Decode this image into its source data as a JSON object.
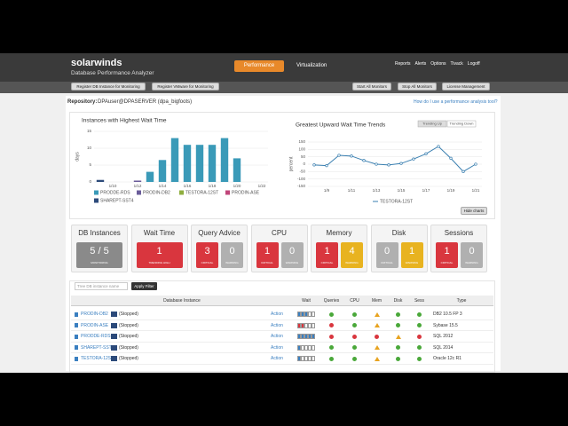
{
  "header": {
    "logo": "solarwinds",
    "product": "Database Performance Analyzer",
    "tabs": [
      "Performance",
      "Virtualization"
    ],
    "links": [
      "Reports",
      "Alerts",
      "Options",
      "Tivack",
      "Logoff"
    ]
  },
  "toolbar": {
    "left": [
      "Register DB Instance for Monitoring",
      "Register VMware for Monitoring"
    ],
    "right": [
      "Start All Monitors",
      "Stop All Monitors",
      "License Management"
    ]
  },
  "repository": {
    "label": "Repository:",
    "value": "DPAuser@DPASERVER (dpa_bigfoots)",
    "help": "How do I use a performance analysis tool?"
  },
  "chart_data": [
    {
      "type": "bar",
      "title": "Instances with Highest Wait Time",
      "y_label": "days",
      "categories": [
        null,
        "1/10",
        null,
        "1/12",
        null,
        "1/14",
        null,
        "1/16",
        null,
        "1/18",
        null,
        "1/20",
        null,
        "1/22"
      ],
      "series": [
        {
          "name": "PRODDE-RDS",
          "color": "#3a9ab8",
          "values": [
            0,
            0,
            0,
            0,
            3,
            6.5,
            13,
            11,
            11,
            11,
            13,
            7,
            0,
            0
          ]
        },
        {
          "name": "PRODIN-DB2",
          "color": "#6a5c9a",
          "values": [
            0,
            0,
            0,
            0.4,
            0,
            0,
            0,
            0,
            0,
            0,
            0,
            0,
            0,
            0
          ]
        },
        {
          "name": "TESTORA-12ST",
          "color": "#8fae3f",
          "values": [
            0,
            0,
            0,
            0,
            0,
            0,
            0,
            0,
            0,
            0,
            0,
            0,
            0,
            0
          ]
        },
        {
          "name": "PRODIN-ASE",
          "color": "#c0467a",
          "values": [
            0,
            0,
            0,
            0,
            0,
            0,
            0,
            0,
            0,
            0,
            0,
            0,
            0,
            0
          ]
        },
        {
          "name": "SHAREPT-SST4",
          "color": "#2c4a7a",
          "values": [
            0.6,
            0,
            0,
            0,
            0,
            0,
            0,
            0,
            0,
            0,
            0,
            0,
            0,
            0
          ]
        }
      ],
      "ylim": [
        0,
        15
      ],
      "yticks": [
        0,
        5,
        10,
        15
      ],
      "grid": true
    },
    {
      "type": "line",
      "title": "Greatest Upward Wait Time Trends",
      "y_label": "percent",
      "buttons": [
        "Trending Up",
        "Trending Down"
      ],
      "categories": [
        null,
        "1/9",
        null,
        "1/11",
        null,
        "1/13",
        null,
        "1/15",
        null,
        "1/17",
        null,
        "1/19",
        null,
        "1/21"
      ],
      "series": [
        {
          "name": "TESTORA-12ST",
          "color": "#3a7fb0",
          "values": [
            -5,
            -10,
            60,
            55,
            25,
            0,
            -5,
            5,
            35,
            70,
            120,
            40,
            -50,
            0
          ]
        }
      ],
      "ylim": [
        -150,
        150
      ],
      "yticks": [
        -150,
        -100,
        -50,
        0,
        50,
        100,
        150
      ],
      "grid": true
    }
  ],
  "hide_charts": "Hide charts",
  "cards": [
    {
      "title": "DB Instances",
      "boxes": [
        {
          "value": "5 / 5",
          "label": "MONITORING",
          "color": "#8a8a8a"
        }
      ]
    },
    {
      "title": "Wait Time",
      "boxes": [
        {
          "value": "1",
          "label": "TRENDING HIGH",
          "color": "#d9363e"
        }
      ]
    },
    {
      "title": "Query Advice",
      "boxes": [
        {
          "value": "3",
          "label": "CRITICAL",
          "color": "#d9363e"
        },
        {
          "value": "0",
          "label": "WARNING",
          "color": "#b0b0b0"
        }
      ]
    },
    {
      "title": "CPU",
      "boxes": [
        {
          "value": "1",
          "label": "CRITICAL",
          "color": "#d9363e"
        },
        {
          "value": "0",
          "label": "WARNING",
          "color": "#b0b0b0"
        }
      ]
    },
    {
      "title": "Memory",
      "boxes": [
        {
          "value": "1",
          "label": "CRITICAL",
          "color": "#d9363e"
        },
        {
          "value": "4",
          "label": "WARNING",
          "color": "#e8b320"
        }
      ]
    },
    {
      "title": "Disk",
      "boxes": [
        {
          "value": "0",
          "label": "CRITICAL",
          "color": "#b0b0b0"
        },
        {
          "value": "1",
          "label": "WARNING",
          "color": "#e8b320"
        }
      ]
    },
    {
      "title": "Sessions",
      "boxes": [
        {
          "value": "1",
          "label": "CRITICAL",
          "color": "#d9363e"
        },
        {
          "value": "0",
          "label": "WARNING",
          "color": "#b0b0b0"
        }
      ]
    }
  ],
  "table": {
    "filter_placeholder": "Tree DB instance name",
    "filter_button": "Apply Filter",
    "action": "Action",
    "columns": [
      "Database Instance",
      "Wait",
      "Queries",
      "CPU",
      "Mem",
      "Disk",
      "Sess",
      "Type"
    ],
    "rows": [
      {
        "name": "PRODIN-DB2",
        "state": "(Stopped)",
        "wait": 3,
        "wait_color": "#3a7fc0",
        "status": [
          "ok",
          "ok",
          "warn",
          "ok",
          "ok"
        ],
        "type": "DB2 10.5 FP 3"
      },
      {
        "name": "PRODIN-ASE",
        "state": "(Stopped)",
        "wait": 2,
        "wait_color": "#d9363e",
        "status": [
          "crit",
          "ok",
          "warn",
          "ok",
          "ok"
        ],
        "type": "Sybase 15.5"
      },
      {
        "name": "PRODDE-RDS",
        "state": "(Stopped)",
        "wait": 5,
        "wait_color": "#3a7fc0",
        "status": [
          "crit",
          "crit",
          "crit",
          "warn",
          "crit"
        ],
        "type": "SQL 2012"
      },
      {
        "name": "SHAREPT-SST4",
        "state": "(Stopped)",
        "wait": 1,
        "wait_color": "#3a7fc0",
        "status": [
          "ok",
          "ok",
          "warn",
          "ok",
          "ok"
        ],
        "type": "SQL 2014"
      },
      {
        "name": "TESTORA-12ST",
        "state": "(Stopped)",
        "wait": 1,
        "wait_color": "#3a7fc0",
        "status": [
          "ok",
          "ok",
          "warn",
          "ok",
          "ok"
        ],
        "type": "Oracle 12c R1"
      }
    ]
  }
}
